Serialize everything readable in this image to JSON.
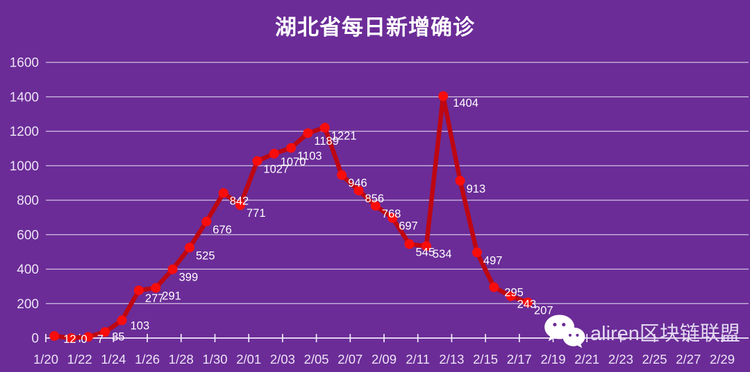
{
  "title": "湖北省每日新增确诊",
  "colors": {
    "background": "#6B2C97",
    "line": "#BE0712",
    "marker": "#F90D0C",
    "grid": "#EFE8F7",
    "axis": "#F2EBF9",
    "axis_text": "#EDE4F6",
    "point_label_text": "#FFFFFF",
    "title_text": "#FFFFFF",
    "watermark_text": "#E3D9F2"
  },
  "watermark": {
    "icon": "wechat-icon",
    "text": "aliren区块链联盟"
  },
  "chart_data": {
    "type": "line",
    "title": "湖北省每日新增确诊",
    "x": [
      "1/20",
      "1/21",
      "1/22",
      "1/23",
      "1/24",
      "1/25",
      "1/26",
      "1/27",
      "1/28",
      "1/29",
      "1/30",
      "1/31",
      "2/01",
      "2/02",
      "2/03",
      "2/04",
      "2/05",
      "2/06",
      "2/07",
      "2/08",
      "2/09",
      "2/10",
      "2/11",
      "2/12",
      "2/13",
      "2/14",
      "2/15",
      "2/16",
      "2/17"
    ],
    "values": [
      12,
      0,
      7,
      35,
      103,
      277,
      291,
      399,
      525,
      676,
      842,
      771,
      1027,
      1070,
      1103,
      1189,
      1221,
      946,
      856,
      768,
      697,
      545,
      534,
      1404,
      913,
      497,
      295,
      243,
      207
    ],
    "data_labels_shown": true,
    "x_tick_labels": [
      "1/20",
      "1/22",
      "1/24",
      "1/26",
      "1/28",
      "1/30",
      "2/01",
      "2/03",
      "2/05",
      "2/07",
      "2/09",
      "2/11",
      "2/13",
      "2/15",
      "2/17",
      "2/19",
      "2/21",
      "2/23",
      "2/25",
      "2/27",
      "2/29"
    ],
    "y_ticks": [
      0,
      200,
      400,
      600,
      800,
      1000,
      1200,
      1400,
      1600
    ],
    "ylim": [
      0,
      1600
    ],
    "grid": true,
    "legend": false,
    "xlabel": "",
    "ylabel": ""
  }
}
